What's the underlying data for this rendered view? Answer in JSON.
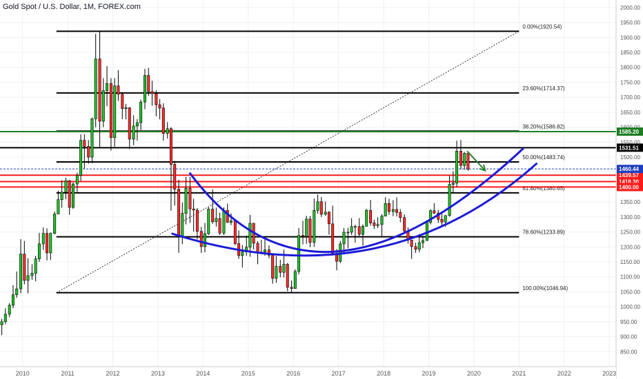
{
  "header": {
    "title": "Gold Spot / U.S. Dollar, 1M, FOREX.com"
  },
  "colors": {
    "up": "#22c22a",
    "down": "#ff2b2b",
    "wick": "#000000",
    "fib_line": "#000000",
    "green_line": "#1e7d22",
    "red_line": "#ff1a1a",
    "price_line": "#1e3fbf",
    "arc": "#1b1bd6",
    "arrow": "#2e7d32",
    "grid": "#eef0f3",
    "axis_text": "#555555"
  },
  "chart_data": {
    "type": "candlestick",
    "title": "Gold Spot / U.S. Dollar, 1M, FOREX.com",
    "ylim": [
      800,
      2025
    ],
    "xlim": [
      2009.5,
      2023.15
    ],
    "y_ticks": [
      850,
      900,
      950,
      1000,
      1050,
      1100,
      1150,
      1200,
      1250,
      1300,
      1350,
      1400,
      1450,
      1500,
      1550,
      1600,
      1650,
      1700,
      1750,
      1800,
      1850,
      1900,
      1950,
      2000
    ],
    "y_tick_labels": [
      "850.00",
      "900.00",
      "950.00",
      "1000.00",
      "1050.00",
      "1100.00",
      "1150.00",
      "1200.00",
      "1250.00",
      "1300.00",
      "1350.00",
      "1400.00",
      "1450.00",
      "1500.00",
      "1550.00",
      "1600.00",
      "1650.00",
      "1700.00",
      "1750.00",
      "1800.00",
      "1850.00",
      "1900.00",
      "1950.00",
      "2000.00"
    ],
    "x_ticks": [
      2010,
      2011,
      2012,
      2013,
      2014,
      2015,
      2016,
      2017,
      2018,
      2019,
      2020,
      2021,
      2022,
      2023
    ],
    "x_tick_labels": [
      "2010",
      "2011",
      "2012",
      "2013",
      "2014",
      "2015",
      "2016",
      "2017",
      "2018",
      "2019",
      "2020",
      "2021",
      "2022",
      "2023"
    ],
    "candles": [
      {
        "t": 2009.46,
        "o": 928,
        "h": 958,
        "l": 912,
        "c": 940
      },
      {
        "t": 2009.54,
        "o": 940,
        "h": 960,
        "l": 905,
        "c": 950
      },
      {
        "t": 2009.62,
        "o": 950,
        "h": 995,
        "l": 942,
        "c": 975
      },
      {
        "t": 2009.71,
        "o": 975,
        "h": 1012,
        "l": 965,
        "c": 1005
      },
      {
        "t": 2009.79,
        "o": 1005,
        "h": 1072,
        "l": 995,
        "c": 1040
      },
      {
        "t": 2009.87,
        "o": 1040,
        "h": 1118,
        "l": 1030,
        "c": 1060
      },
      {
        "t": 2009.96,
        "o": 1060,
        "h": 1226,
        "l": 1045,
        "c": 1176
      },
      {
        "t": 2010.04,
        "o": 1176,
        "h": 1220,
        "l": 1075,
        "c": 1088
      },
      {
        "t": 2010.12,
        "o": 1088,
        "h": 1162,
        "l": 1045,
        "c": 1104
      },
      {
        "t": 2010.21,
        "o": 1104,
        "h": 1142,
        "l": 1090,
        "c": 1112
      },
      {
        "t": 2010.29,
        "o": 1112,
        "h": 1170,
        "l": 1085,
        "c": 1160
      },
      {
        "t": 2010.37,
        "o": 1160,
        "h": 1247,
        "l": 1150,
        "c": 1210
      },
      {
        "t": 2010.46,
        "o": 1210,
        "h": 1265,
        "l": 1190,
        "c": 1245
      },
      {
        "t": 2010.54,
        "o": 1245,
        "h": 1262,
        "l": 1155,
        "c": 1180
      },
      {
        "t": 2010.62,
        "o": 1180,
        "h": 1248,
        "l": 1156,
        "c": 1245
      },
      {
        "t": 2010.71,
        "o": 1245,
        "h": 1318,
        "l": 1242,
        "c": 1310
      },
      {
        "t": 2010.79,
        "o": 1310,
        "h": 1388,
        "l": 1310,
        "c": 1358
      },
      {
        "t": 2010.87,
        "o": 1358,
        "h": 1423,
        "l": 1331,
        "c": 1383
      },
      {
        "t": 2010.96,
        "o": 1383,
        "h": 1431,
        "l": 1359,
        "c": 1421
      },
      {
        "t": 2011.04,
        "o": 1421,
        "h": 1424,
        "l": 1307,
        "c": 1332
      },
      {
        "t": 2011.12,
        "o": 1332,
        "h": 1415,
        "l": 1327,
        "c": 1410
      },
      {
        "t": 2011.21,
        "o": 1410,
        "h": 1448,
        "l": 1383,
        "c": 1439
      },
      {
        "t": 2011.29,
        "o": 1439,
        "h": 1576,
        "l": 1420,
        "c": 1556
      },
      {
        "t": 2011.37,
        "o": 1556,
        "h": 1577,
        "l": 1462,
        "c": 1536
      },
      {
        "t": 2011.46,
        "o": 1536,
        "h": 1557,
        "l": 1478,
        "c": 1500
      },
      {
        "t": 2011.54,
        "o": 1500,
        "h": 1632,
        "l": 1480,
        "c": 1628
      },
      {
        "t": 2011.62,
        "o": 1628,
        "h": 1912,
        "l": 1600,
        "c": 1828
      },
      {
        "t": 2011.71,
        "o": 1828,
        "h": 1921,
        "l": 1534,
        "c": 1620
      },
      {
        "t": 2011.79,
        "o": 1620,
        "h": 1764,
        "l": 1600,
        "c": 1722
      },
      {
        "t": 2011.87,
        "o": 1722,
        "h": 1804,
        "l": 1670,
        "c": 1746
      },
      {
        "t": 2011.96,
        "o": 1746,
        "h": 1764,
        "l": 1522,
        "c": 1565
      },
      {
        "t": 2012.04,
        "o": 1565,
        "h": 1764,
        "l": 1535,
        "c": 1738
      },
      {
        "t": 2012.12,
        "o": 1738,
        "h": 1791,
        "l": 1688,
        "c": 1710
      },
      {
        "t": 2012.21,
        "o": 1710,
        "h": 1717,
        "l": 1627,
        "c": 1662
      },
      {
        "t": 2012.29,
        "o": 1662,
        "h": 1678,
        "l": 1626,
        "c": 1665
      },
      {
        "t": 2012.37,
        "o": 1665,
        "h": 1667,
        "l": 1527,
        "c": 1560
      },
      {
        "t": 2012.46,
        "o": 1560,
        "h": 1640,
        "l": 1540,
        "c": 1604
      },
      {
        "t": 2012.54,
        "o": 1604,
        "h": 1627,
        "l": 1555,
        "c": 1615
      },
      {
        "t": 2012.62,
        "o": 1615,
        "h": 1692,
        "l": 1590,
        "c": 1684
      },
      {
        "t": 2012.71,
        "o": 1684,
        "h": 1795,
        "l": 1660,
        "c": 1773
      },
      {
        "t": 2012.79,
        "o": 1773,
        "h": 1798,
        "l": 1705,
        "c": 1719
      },
      {
        "t": 2012.87,
        "o": 1719,
        "h": 1755,
        "l": 1672,
        "c": 1712
      },
      {
        "t": 2012.96,
        "o": 1712,
        "h": 1723,
        "l": 1636,
        "c": 1675
      },
      {
        "t": 2013.04,
        "o": 1675,
        "h": 1694,
        "l": 1626,
        "c": 1664
      },
      {
        "t": 2013.12,
        "o": 1664,
        "h": 1680,
        "l": 1555,
        "c": 1579
      },
      {
        "t": 2013.21,
        "o": 1579,
        "h": 1617,
        "l": 1562,
        "c": 1595
      },
      {
        "t": 2013.29,
        "o": 1595,
        "h": 1600,
        "l": 1321,
        "c": 1476
      },
      {
        "t": 2013.37,
        "o": 1476,
        "h": 1487,
        "l": 1338,
        "c": 1393
      },
      {
        "t": 2013.46,
        "o": 1393,
        "h": 1424,
        "l": 1180,
        "c": 1234
      },
      {
        "t": 2013.54,
        "o": 1234,
        "h": 1348,
        "l": 1209,
        "c": 1312
      },
      {
        "t": 2013.62,
        "o": 1312,
        "h": 1434,
        "l": 1275,
        "c": 1396
      },
      {
        "t": 2013.71,
        "o": 1396,
        "h": 1434,
        "l": 1280,
        "c": 1327
      },
      {
        "t": 2013.79,
        "o": 1327,
        "h": 1361,
        "l": 1251,
        "c": 1323
      },
      {
        "t": 2013.87,
        "o": 1323,
        "h": 1330,
        "l": 1225,
        "c": 1252
      },
      {
        "t": 2013.96,
        "o": 1252,
        "h": 1267,
        "l": 1180,
        "c": 1201
      },
      {
        "t": 2014.04,
        "o": 1201,
        "h": 1280,
        "l": 1182,
        "c": 1244
      },
      {
        "t": 2014.12,
        "o": 1244,
        "h": 1332,
        "l": 1240,
        "c": 1326
      },
      {
        "t": 2014.21,
        "o": 1326,
        "h": 1392,
        "l": 1277,
        "c": 1284
      },
      {
        "t": 2014.29,
        "o": 1284,
        "h": 1331,
        "l": 1268,
        "c": 1295
      },
      {
        "t": 2014.37,
        "o": 1295,
        "h": 1315,
        "l": 1240,
        "c": 1246
      },
      {
        "t": 2014.46,
        "o": 1246,
        "h": 1332,
        "l": 1240,
        "c": 1322
      },
      {
        "t": 2014.54,
        "o": 1322,
        "h": 1345,
        "l": 1280,
        "c": 1282
      },
      {
        "t": 2014.62,
        "o": 1282,
        "h": 1312,
        "l": 1273,
        "c": 1287
      },
      {
        "t": 2014.71,
        "o": 1287,
        "h": 1291,
        "l": 1206,
        "c": 1211
      },
      {
        "t": 2014.79,
        "o": 1211,
        "h": 1255,
        "l": 1160,
        "c": 1171
      },
      {
        "t": 2014.87,
        "o": 1171,
        "h": 1206,
        "l": 1131,
        "c": 1183
      },
      {
        "t": 2014.96,
        "o": 1183,
        "h": 1238,
        "l": 1170,
        "c": 1199
      },
      {
        "t": 2015.04,
        "o": 1199,
        "h": 1307,
        "l": 1167,
        "c": 1279
      },
      {
        "t": 2015.12,
        "o": 1279,
        "h": 1280,
        "l": 1191,
        "c": 1212
      },
      {
        "t": 2015.21,
        "o": 1212,
        "h": 1219,
        "l": 1142,
        "c": 1183
      },
      {
        "t": 2015.29,
        "o": 1183,
        "h": 1224,
        "l": 1175,
        "c": 1183
      },
      {
        "t": 2015.37,
        "o": 1183,
        "h": 1232,
        "l": 1170,
        "c": 1190
      },
      {
        "t": 2015.46,
        "o": 1190,
        "h": 1205,
        "l": 1162,
        "c": 1172
      },
      {
        "t": 2015.54,
        "o": 1172,
        "h": 1174,
        "l": 1077,
        "c": 1095
      },
      {
        "t": 2015.62,
        "o": 1095,
        "h": 1170,
        "l": 1080,
        "c": 1135
      },
      {
        "t": 2015.71,
        "o": 1135,
        "h": 1157,
        "l": 1098,
        "c": 1115
      },
      {
        "t": 2015.79,
        "o": 1115,
        "h": 1191,
        "l": 1098,
        "c": 1142
      },
      {
        "t": 2015.87,
        "o": 1142,
        "h": 1146,
        "l": 1052,
        "c": 1065
      },
      {
        "t": 2015.96,
        "o": 1065,
        "h": 1088,
        "l": 1046,
        "c": 1061
      },
      {
        "t": 2016.04,
        "o": 1061,
        "h": 1125,
        "l": 1062,
        "c": 1118
      },
      {
        "t": 2016.12,
        "o": 1118,
        "h": 1263,
        "l": 1108,
        "c": 1238
      },
      {
        "t": 2016.21,
        "o": 1238,
        "h": 1287,
        "l": 1208,
        "c": 1235
      },
      {
        "t": 2016.29,
        "o": 1235,
        "h": 1304,
        "l": 1210,
        "c": 1293
      },
      {
        "t": 2016.37,
        "o": 1293,
        "h": 1303,
        "l": 1199,
        "c": 1215
      },
      {
        "t": 2016.46,
        "o": 1215,
        "h": 1362,
        "l": 1200,
        "c": 1322
      },
      {
        "t": 2016.54,
        "o": 1322,
        "h": 1375,
        "l": 1311,
        "c": 1351
      },
      {
        "t": 2016.62,
        "o": 1351,
        "h": 1367,
        "l": 1300,
        "c": 1309
      },
      {
        "t": 2016.71,
        "o": 1309,
        "h": 1352,
        "l": 1304,
        "c": 1316
      },
      {
        "t": 2016.79,
        "o": 1316,
        "h": 1319,
        "l": 1241,
        "c": 1277
      },
      {
        "t": 2016.87,
        "o": 1277,
        "h": 1338,
        "l": 1171,
        "c": 1173
      },
      {
        "t": 2016.96,
        "o": 1173,
        "h": 1193,
        "l": 1122,
        "c": 1152
      },
      {
        "t": 2017.04,
        "o": 1152,
        "h": 1220,
        "l": 1146,
        "c": 1210
      },
      {
        "t": 2017.12,
        "o": 1210,
        "h": 1263,
        "l": 1180,
        "c": 1249
      },
      {
        "t": 2017.21,
        "o": 1249,
        "h": 1264,
        "l": 1195,
        "c": 1249
      },
      {
        "t": 2017.29,
        "o": 1249,
        "h": 1296,
        "l": 1240,
        "c": 1268
      },
      {
        "t": 2017.37,
        "o": 1268,
        "h": 1274,
        "l": 1214,
        "c": 1268
      },
      {
        "t": 2017.46,
        "o": 1268,
        "h": 1296,
        "l": 1236,
        "c": 1242
      },
      {
        "t": 2017.54,
        "o": 1242,
        "h": 1275,
        "l": 1204,
        "c": 1269
      },
      {
        "t": 2017.62,
        "o": 1269,
        "h": 1327,
        "l": 1268,
        "c": 1322
      },
      {
        "t": 2017.71,
        "o": 1322,
        "h": 1357,
        "l": 1271,
        "c": 1280
      },
      {
        "t": 2017.79,
        "o": 1280,
        "h": 1291,
        "l": 1260,
        "c": 1271
      },
      {
        "t": 2017.87,
        "o": 1271,
        "h": 1299,
        "l": 1263,
        "c": 1275
      },
      {
        "t": 2017.96,
        "o": 1275,
        "h": 1309,
        "l": 1236,
        "c": 1303
      },
      {
        "t": 2018.04,
        "o": 1303,
        "h": 1366,
        "l": 1302,
        "c": 1345
      },
      {
        "t": 2018.12,
        "o": 1345,
        "h": 1361,
        "l": 1307,
        "c": 1318
      },
      {
        "t": 2018.21,
        "o": 1318,
        "h": 1356,
        "l": 1303,
        "c": 1325
      },
      {
        "t": 2018.29,
        "o": 1325,
        "h": 1365,
        "l": 1302,
        "c": 1315
      },
      {
        "t": 2018.37,
        "o": 1315,
        "h": 1326,
        "l": 1282,
        "c": 1298
      },
      {
        "t": 2018.46,
        "o": 1298,
        "h": 1309,
        "l": 1245,
        "c": 1253
      },
      {
        "t": 2018.54,
        "o": 1253,
        "h": 1265,
        "l": 1211,
        "c": 1223
      },
      {
        "t": 2018.62,
        "o": 1223,
        "h": 1221,
        "l": 1160,
        "c": 1201
      },
      {
        "t": 2018.71,
        "o": 1201,
        "h": 1214,
        "l": 1180,
        "c": 1192
      },
      {
        "t": 2018.79,
        "o": 1192,
        "h": 1243,
        "l": 1182,
        "c": 1214
      },
      {
        "t": 2018.87,
        "o": 1214,
        "h": 1237,
        "l": 1196,
        "c": 1221
      },
      {
        "t": 2018.96,
        "o": 1221,
        "h": 1284,
        "l": 1221,
        "c": 1282
      },
      {
        "t": 2019.04,
        "o": 1282,
        "h": 1326,
        "l": 1275,
        "c": 1321
      },
      {
        "t": 2019.12,
        "o": 1321,
        "h": 1346,
        "l": 1310,
        "c": 1313
      },
      {
        "t": 2019.21,
        "o": 1313,
        "h": 1324,
        "l": 1280,
        "c": 1292
      },
      {
        "t": 2019.29,
        "o": 1292,
        "h": 1310,
        "l": 1266,
        "c": 1283
      },
      {
        "t": 2019.37,
        "o": 1283,
        "h": 1306,
        "l": 1267,
        "c": 1305
      },
      {
        "t": 2019.46,
        "o": 1305,
        "h": 1439,
        "l": 1301,
        "c": 1409
      },
      {
        "t": 2019.54,
        "o": 1409,
        "h": 1453,
        "l": 1381,
        "c": 1413
      },
      {
        "t": 2019.62,
        "o": 1413,
        "h": 1555,
        "l": 1400,
        "c": 1520
      },
      {
        "t": 2019.71,
        "o": 1520,
        "h": 1557,
        "l": 1459,
        "c": 1472
      },
      {
        "t": 2019.79,
        "o": 1472,
        "h": 1517,
        "l": 1458,
        "c": 1513
      },
      {
        "t": 2019.87,
        "o": 1513,
        "h": 1516,
        "l": 1455,
        "c": 1460
      }
    ],
    "levels": [
      {
        "label": "0.00%(1920.54)",
        "value": 1920.54
      },
      {
        "label": "23.60%(1714.37)",
        "value": 1714.37
      },
      {
        "label": "38.20%(1586.82)",
        "value": 1586.82
      },
      {
        "label": "50.00%(1483.74)",
        "value": 1483.74
      },
      {
        "label": "61.80%(1380.65)",
        "value": 1380.65
      },
      {
        "label": "78.60%(1233.89)",
        "value": 1233.89
      },
      {
        "label": "100.00%(1046.94)",
        "value": 1046.94
      }
    ],
    "horizontal_lines": [
      {
        "value": 1585.2,
        "style": "green",
        "badge": "1585.20"
      },
      {
        "value": 1531.51,
        "style": "black",
        "badge": "1531.51"
      },
      {
        "value": 1439.57,
        "style": "red",
        "badge": "1439.57"
      },
      {
        "value": 1418.3,
        "style": "red",
        "badge": "1418.30"
      },
      {
        "value": 1400.0,
        "style": "red",
        "badge": "1400.00"
      },
      {
        "value": 1460.44,
        "style": "dotted-price",
        "badge": "1460.44"
      }
    ],
    "trend_line": {
      "from": [
        2010.75,
        1046.94
      ],
      "to": [
        2021.0,
        1920.54
      ]
    },
    "arcs": [
      {
        "from": [
          2013.7,
          1448
        ],
        "ctrl": [
          2016.5,
          880
        ],
        "to": [
          2021.1,
          1530
        ]
      },
      {
        "from": [
          2013.3,
          1245
        ],
        "ctrl": [
          2018.0,
          1020
        ],
        "to": [
          2021.4,
          1480
        ]
      }
    ],
    "arrow": {
      "from": [
        2019.85,
        1520
      ],
      "to": [
        2020.25,
        1455
      ]
    }
  }
}
